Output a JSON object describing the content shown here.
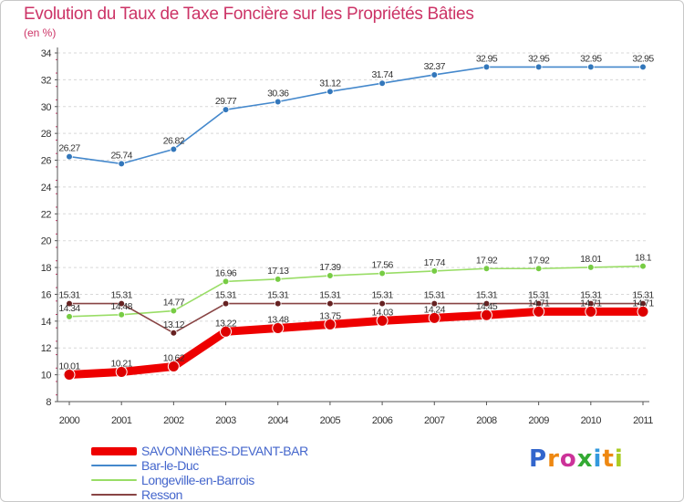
{
  "title": "Evolution du Taux de Taxe Foncière sur les Propriétés Bâties",
  "unit": "(en %)",
  "brand": {
    "text": "Proxiti",
    "letter_colors": [
      "#3366cc",
      "#ee8811",
      "#cc3399",
      "#33aa33",
      "#3399dd",
      "#ee8811",
      "#aacc22"
    ]
  },
  "chart_data": {
    "type": "line",
    "title": "Evolution du Taux de Taxe Foncière sur les Propriétés Bâties",
    "ylabel": "(en %)",
    "xlabel": "",
    "ylim": [
      8,
      34
    ],
    "ytick_step": 2,
    "grid": "horizontal dashed",
    "legend_position": "bottom-left",
    "categories": [
      "2000",
      "2001",
      "2002",
      "2003",
      "2004",
      "2005",
      "2006",
      "2007",
      "2008",
      "2009",
      "2010",
      "2011"
    ],
    "series": [
      {
        "name": "Bar-le-Duc",
        "color": "#4488cc",
        "dot_color": "#3377bb",
        "values": [
          26.27,
          25.74,
          26.82,
          29.77,
          30.36,
          31.12,
          31.74,
          32.37,
          32.95,
          32.95,
          32.95,
          32.95
        ],
        "labels": [
          "26.27",
          "25.74",
          "26.82",
          "29.77",
          "30.36",
          "31.12",
          "31.74",
          "32.37",
          "32.95",
          "32.95",
          "32.95",
          "32.95"
        ]
      },
      {
        "name": "Longeville-en-Barrois",
        "color": "#99dd66",
        "dot_color": "#77cc44",
        "values": [
          14.34,
          14.48,
          14.77,
          16.96,
          17.13,
          17.39,
          17.56,
          17.74,
          17.92,
          17.92,
          18.01,
          18.1
        ],
        "labels": [
          "14.34",
          "14.48",
          "14.77",
          "16.96",
          "17.13",
          "17.39",
          "17.56",
          "17.74",
          "17.92",
          "17.92",
          "18.01",
          "18.1"
        ]
      },
      {
        "name": "Resson",
        "color": "#884444",
        "dot_color": "#662222",
        "values": [
          15.31,
          15.31,
          13.12,
          15.31,
          15.31,
          15.31,
          15.31,
          15.31,
          15.31,
          15.31,
          15.31,
          15.31
        ],
        "labels": [
          "15.31",
          "15.31",
          "13.12",
          "15.31",
          "15.31",
          "15.31",
          "15.31",
          "15.31",
          "15.31",
          "15.31",
          "15.31",
          "15.31"
        ]
      },
      {
        "name": "SAVONNIèRES-DEVANT-BAR",
        "color": "#ee0000",
        "dot_color": "#dd0000",
        "values": [
          10.01,
          10.21,
          10.62,
          13.22,
          13.48,
          13.75,
          14.03,
          14.24,
          14.45,
          14.71,
          14.71,
          14.71
        ],
        "labels": [
          "10.01",
          "10.21",
          "10.62",
          "13.22",
          "13.48",
          "13.75",
          "14.03",
          "14.24",
          "14.45",
          "14.71",
          "14.71",
          "14.71"
        ]
      }
    ]
  },
  "legend": [
    {
      "label": "SAVONNIèRES-DEVANT-BAR",
      "color": "#ee0000"
    },
    {
      "label": "Bar-le-Duc",
      "color": "#4488cc"
    },
    {
      "label": "Longeville-en-Barrois",
      "color": "#99dd66"
    },
    {
      "label": "Resson",
      "color": "#884444"
    }
  ]
}
